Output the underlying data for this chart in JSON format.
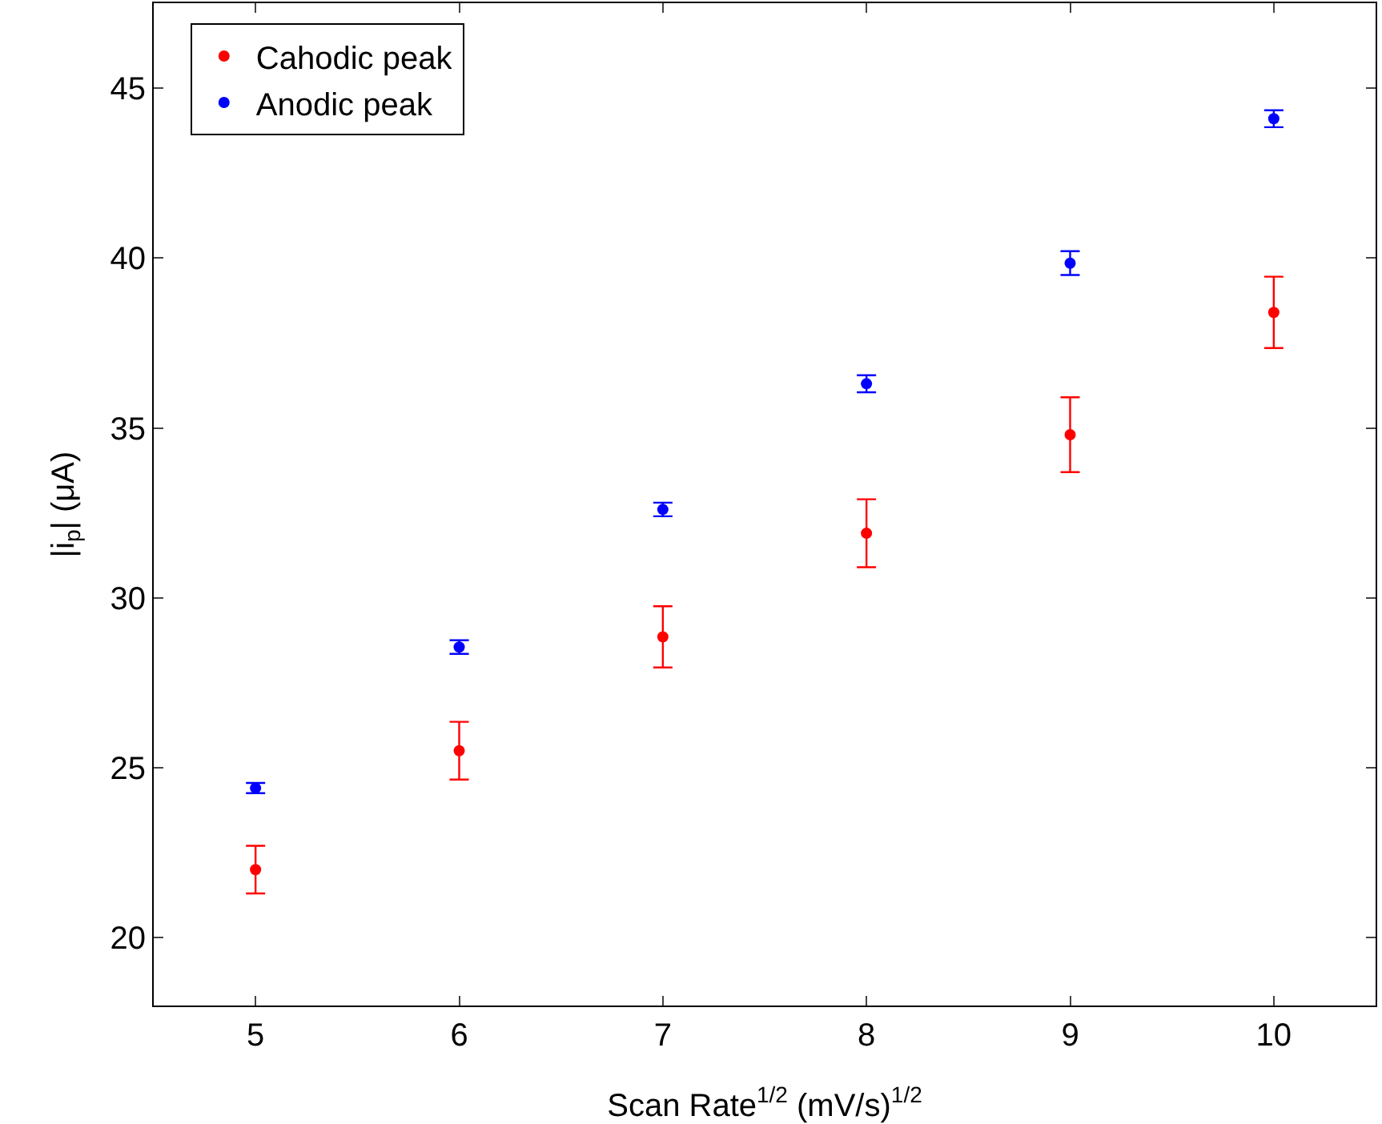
{
  "chart_data": {
    "type": "scatter",
    "xlabel": "Scan Rate$^{1/2}$ (mV/s)$^{1/2}$",
    "ylabel": "|i$_{p}$| (μA)",
    "x": [
      5,
      6,
      7,
      8,
      9,
      10
    ],
    "series": [
      {
        "name": "Cahodic peak",
        "color": "#ff0000",
        "values": [
          22.0,
          25.5,
          28.85,
          31.9,
          34.8,
          38.4
        ],
        "errors": [
          0.7,
          0.85,
          0.9,
          1.0,
          1.1,
          1.05
        ]
      },
      {
        "name": "Anodic peak",
        "color": "#0000ff",
        "values": [
          24.4,
          28.55,
          32.6,
          36.3,
          39.85,
          44.1
        ],
        "errors": [
          0.15,
          0.2,
          0.2,
          0.25,
          0.35,
          0.25
        ]
      }
    ],
    "xlim": [
      4.5,
      10.5
    ],
    "xticks": [
      5,
      6,
      7,
      8,
      9,
      10
    ],
    "ylim": [
      18,
      47.5
    ],
    "yticks": [
      20,
      25,
      30,
      35,
      40,
      45
    ],
    "grid": false,
    "legend": "top left",
    "marker": "circle"
  }
}
